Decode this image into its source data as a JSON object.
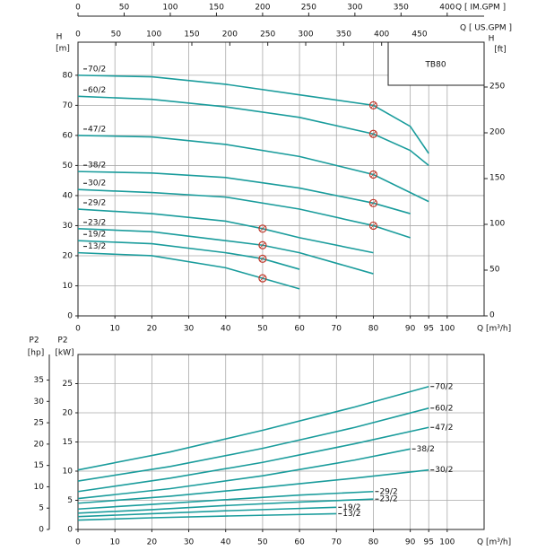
{
  "chart_data": [
    {
      "type": "line",
      "title": "TB80",
      "xlabel": "Q",
      "xunit": "[m³/h]",
      "ylabel": "H",
      "yunit": "[m]",
      "y2label": "H",
      "y2unit": "[ft]",
      "x2label": "Q [ IM.GPM ]",
      "x3label": "Q [ US.GPM ]",
      "xlim": [
        0,
        110
      ],
      "xticks": [
        0,
        10,
        20,
        30,
        40,
        50,
        60,
        70,
        80,
        90,
        95,
        100
      ],
      "ylim": [
        0,
        91
      ],
      "yticks": [
        0,
        10,
        20,
        30,
        40,
        50,
        60,
        70,
        80
      ],
      "y2lim": [
        0,
        299
      ],
      "y2ticks": [
        0,
        50,
        100,
        150,
        200,
        250
      ],
      "x2lim": [
        0,
        440
      ],
      "x2ticks": [
        0,
        50,
        100,
        150,
        200,
        250,
        300,
        350,
        400
      ],
      "x3lim": [
        0,
        535
      ],
      "x3ticks": [
        0,
        50,
        100,
        150,
        200,
        250,
        300,
        350,
        400,
        450
      ],
      "grid": true,
      "color": "#1a9c9c",
      "series": [
        {
          "name": "70/2",
          "x": [
            0,
            20,
            40,
            60,
            80,
            90,
            95
          ],
          "values": [
            80,
            79.5,
            77,
            73.5,
            70,
            63,
            54
          ]
        },
        {
          "name": "60/2",
          "x": [
            0,
            20,
            40,
            60,
            80,
            90,
            95
          ],
          "values": [
            73,
            72,
            69.5,
            66,
            60.5,
            55,
            50
          ]
        },
        {
          "name": "47/2",
          "x": [
            0,
            20,
            40,
            60,
            80,
            95
          ],
          "values": [
            60,
            59.5,
            57,
            53,
            47,
            38
          ]
        },
        {
          "name": "38/2",
          "x": [
            0,
            20,
            40,
            60,
            80,
            90
          ],
          "values": [
            48,
            47.5,
            46,
            42.5,
            37.5,
            34
          ]
        },
        {
          "name": "30/2",
          "x": [
            0,
            20,
            40,
            60,
            80,
            90
          ],
          "values": [
            42,
            41,
            39.5,
            35.5,
            30,
            26
          ]
        },
        {
          "name": "29/2",
          "x": [
            0,
            20,
            40,
            50,
            60,
            80
          ],
          "values": [
            35.5,
            34,
            31.5,
            29,
            26,
            21
          ]
        },
        {
          "name": "23/2",
          "x": [
            0,
            20,
            40,
            50,
            60,
            80
          ],
          "values": [
            29,
            28,
            25,
            23.5,
            21,
            14
          ]
        },
        {
          "name": "19/2",
          "x": [
            0,
            20,
            40,
            50,
            60
          ],
          "values": [
            25,
            24,
            21,
            19,
            15.5
          ]
        },
        {
          "name": "13/2",
          "x": [
            0,
            20,
            40,
            50,
            60
          ],
          "values": [
            21,
            20,
            16,
            12.5,
            9
          ]
        }
      ],
      "duty_points": {
        "color": "#c0392b",
        "x": [
          80,
          80,
          80,
          80,
          80,
          50,
          50,
          50,
          50
        ],
        "values": [
          70,
          60.5,
          47,
          37.5,
          30,
          29,
          23.5,
          19,
          12.5
        ]
      }
    },
    {
      "type": "line",
      "xlabel": "Q",
      "xunit": "[m³/h]",
      "ylabel": "P2",
      "yunit": "[kW]",
      "y2label": "P2",
      "y2unit": "[hp]",
      "xlim": [
        0,
        110
      ],
      "xticks": [
        0,
        10,
        20,
        30,
        40,
        50,
        60,
        70,
        80,
        90,
        95,
        100
      ],
      "ylim": [
        0,
        30
      ],
      "yticks": [
        0,
        5,
        10,
        15,
        20,
        25
      ],
      "y2lim": [
        0,
        41
      ],
      "y2ticks": [
        0,
        5,
        10,
        15,
        20,
        25,
        30,
        35
      ],
      "grid": true,
      "color": "#1a9c9c",
      "series": [
        {
          "name": "70/2",
          "x": [
            0,
            25,
            50,
            75,
            95
          ],
          "values": [
            10.2,
            13.3,
            17,
            21,
            24.5
          ]
        },
        {
          "name": "60/2",
          "x": [
            0,
            25,
            50,
            75,
            95
          ],
          "values": [
            8.3,
            10.8,
            13.9,
            17.5,
            20.8
          ]
        },
        {
          "name": "47/2",
          "x": [
            0,
            25,
            50,
            75,
            95
          ],
          "values": [
            6.5,
            8.8,
            11.5,
            14.7,
            17.5
          ]
        },
        {
          "name": "38/2",
          "x": [
            0,
            25,
            50,
            75,
            90
          ],
          "values": [
            5.3,
            7,
            9.2,
            11.9,
            13.8
          ]
        },
        {
          "name": "30/2",
          "x": [
            0,
            25,
            50,
            75,
            95
          ],
          "values": [
            4.5,
            5.7,
            7.2,
            8.8,
            10.2
          ]
        },
        {
          "name": "29/2",
          "x": [
            0,
            20,
            40,
            60,
            80
          ],
          "values": [
            3.5,
            4.3,
            5.1,
            5.9,
            6.5
          ]
        },
        {
          "name": "23/2",
          "x": [
            0,
            20,
            40,
            60,
            80
          ],
          "values": [
            2.8,
            3.4,
            4.1,
            4.7,
            5.2
          ]
        },
        {
          "name": "19/2",
          "x": [
            0,
            20,
            40,
            55,
            70
          ],
          "values": [
            2.2,
            2.7,
            3.2,
            3.5,
            3.8
          ]
        },
        {
          "name": "13/2",
          "x": [
            0,
            20,
            40,
            55,
            70
          ],
          "values": [
            1.6,
            2,
            2.3,
            2.5,
            2.7
          ]
        }
      ]
    }
  ]
}
